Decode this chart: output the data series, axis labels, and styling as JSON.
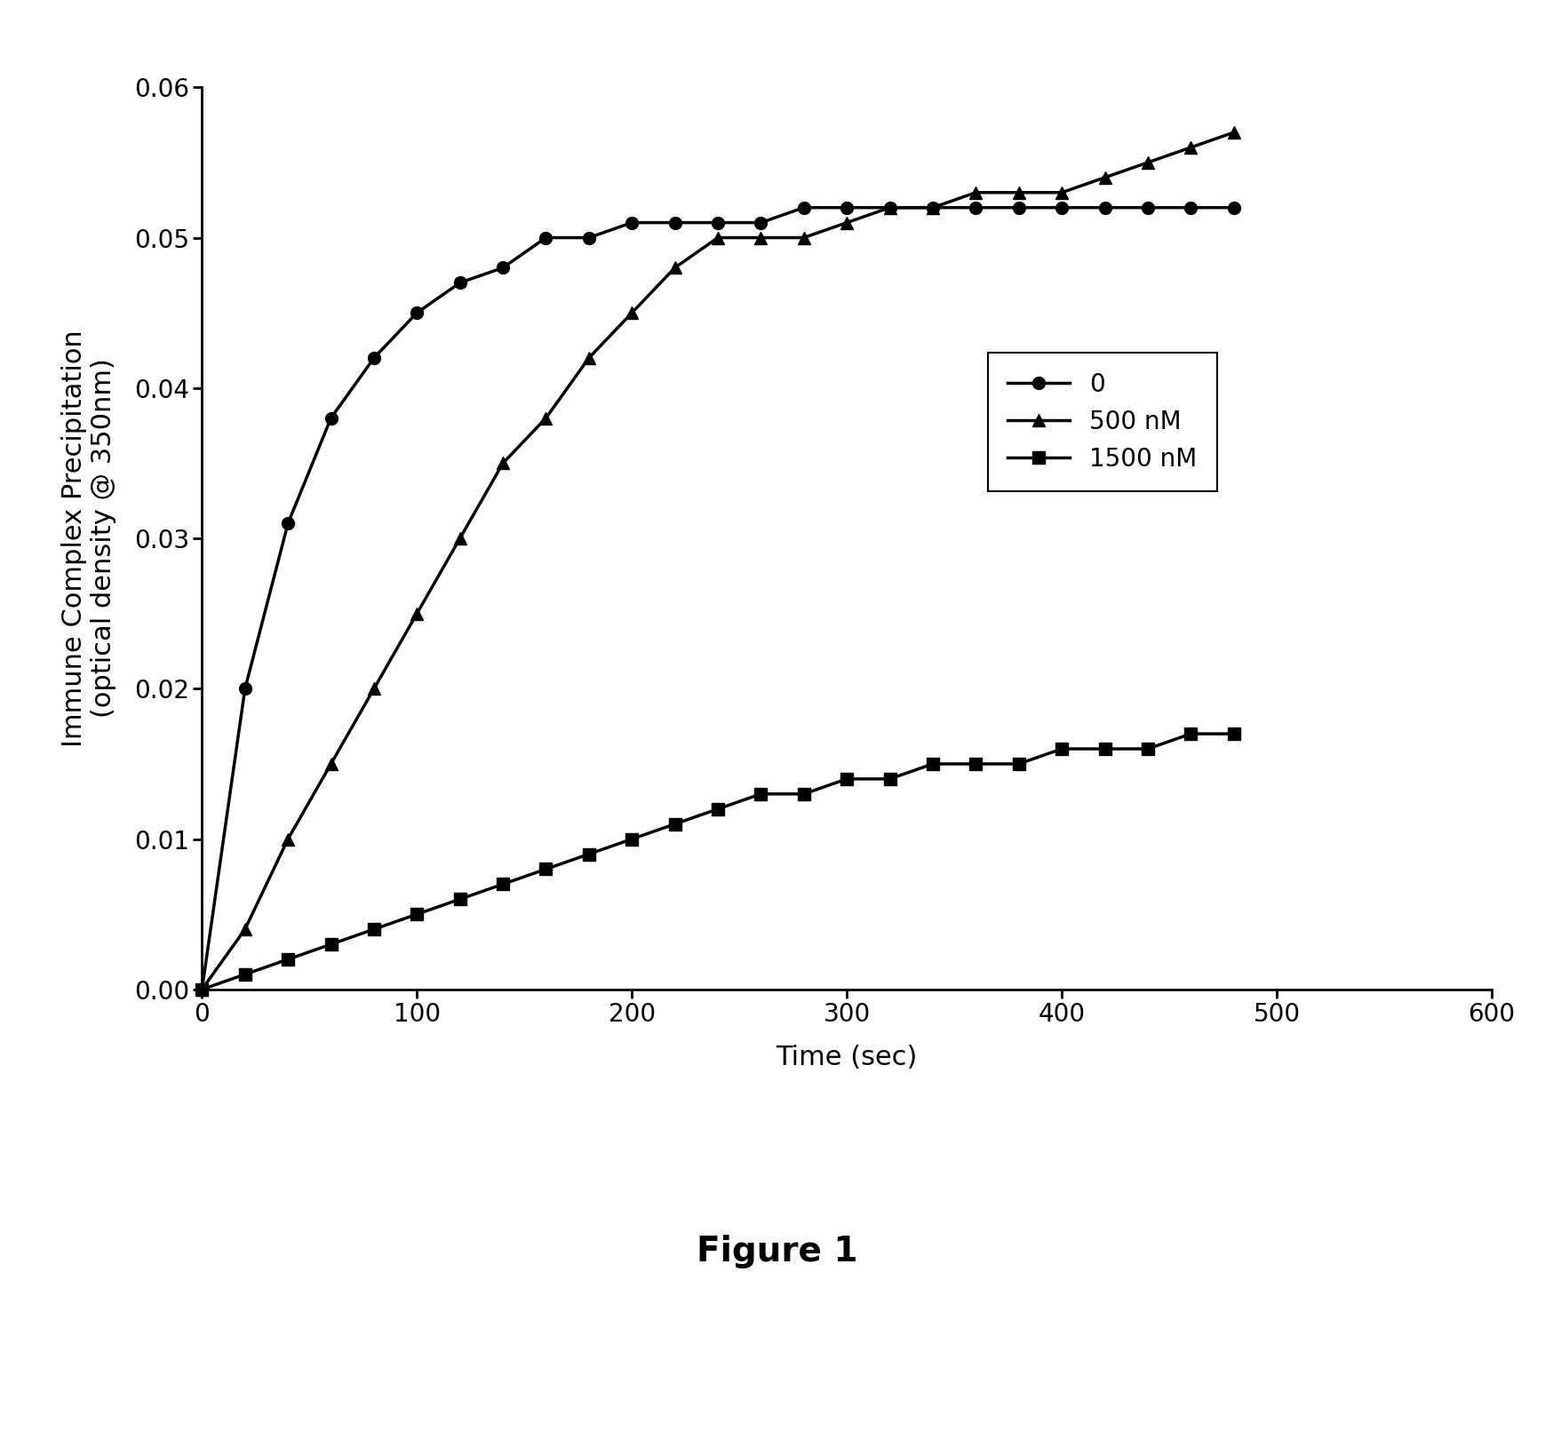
{
  "title": "Figure 1",
  "xlabel": "Time (sec)",
  "ylabel": "Immune Complex Precipitation\n(optical density @ 350nm)",
  "xlim": [
    0,
    600
  ],
  "ylim": [
    0,
    0.06
  ],
  "xticks": [
    0,
    100,
    200,
    300,
    400,
    500,
    600
  ],
  "yticks": [
    0.0,
    0.01,
    0.02,
    0.03,
    0.04,
    0.05,
    0.06
  ],
  "background_color": "#ffffff",
  "line_color": "#000000",
  "series": [
    {
      "label": "0",
      "marker": "o",
      "x": [
        0,
        20,
        40,
        60,
        80,
        100,
        120,
        140,
        160,
        180,
        200,
        220,
        240,
        260,
        280,
        300,
        320,
        340,
        360,
        380,
        400,
        420,
        440,
        460,
        480
      ],
      "y": [
        0.0,
        0.02,
        0.031,
        0.038,
        0.042,
        0.045,
        0.047,
        0.048,
        0.05,
        0.05,
        0.051,
        0.051,
        0.051,
        0.051,
        0.052,
        0.052,
        0.052,
        0.052,
        0.052,
        0.052,
        0.052,
        0.052,
        0.052,
        0.052,
        0.052
      ]
    },
    {
      "label": "500 nM",
      "marker": "^",
      "x": [
        0,
        20,
        40,
        60,
        80,
        100,
        120,
        140,
        160,
        180,
        200,
        220,
        240,
        260,
        280,
        300,
        320,
        340,
        360,
        380,
        400,
        420,
        440,
        460,
        480
      ],
      "y": [
        0.0,
        0.004,
        0.01,
        0.015,
        0.02,
        0.025,
        0.03,
        0.035,
        0.038,
        0.042,
        0.045,
        0.048,
        0.05,
        0.05,
        0.05,
        0.051,
        0.052,
        0.052,
        0.053,
        0.053,
        0.053,
        0.054,
        0.055,
        0.056,
        0.057
      ]
    },
    {
      "label": "1500 nM",
      "marker": "s",
      "x": [
        0,
        20,
        40,
        60,
        80,
        100,
        120,
        140,
        160,
        180,
        200,
        220,
        240,
        260,
        280,
        300,
        320,
        340,
        360,
        380,
        400,
        420,
        440,
        460,
        480
      ],
      "y": [
        0.0,
        0.001,
        0.002,
        0.003,
        0.004,
        0.005,
        0.006,
        0.007,
        0.008,
        0.009,
        0.01,
        0.011,
        0.012,
        0.013,
        0.013,
        0.014,
        0.014,
        0.015,
        0.015,
        0.015,
        0.016,
        0.016,
        0.016,
        0.017,
        0.017
      ]
    }
  ],
  "line_width": 2.5,
  "marker_size": 10,
  "font_size_labels": 22,
  "font_size_ticks": 20,
  "font_size_legend": 20,
  "font_size_title": 28
}
